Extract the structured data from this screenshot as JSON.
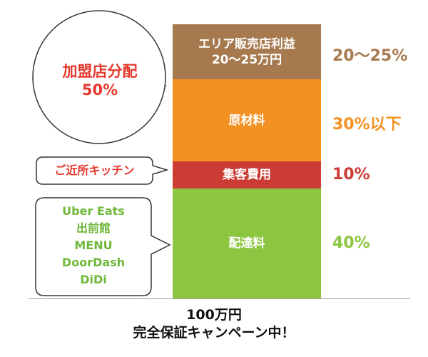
{
  "chart_data": {
    "type": "bar",
    "stacked": true,
    "segments": [
      {
        "label": "配達料",
        "value": 40,
        "percent_label": "40%",
        "color": "#8cc540"
      },
      {
        "label": "集客費用",
        "value": 10,
        "percent_label": "10%",
        "color": "#cc3c35"
      },
      {
        "label": "原材料",
        "value": 30,
        "percent_label": "30%以下",
        "color": "#f39222"
      },
      {
        "label": "エリア販売店利益\n20～25万円",
        "value": 20,
        "percent_label": "20～25%",
        "color": "#a7794e"
      }
    ],
    "total_label": "100万円",
    "caption": "完全保証キャンペーン中！"
  },
  "callouts": {
    "franchise": {
      "line1": "加盟店分配",
      "line2": "50%",
      "color": "#e5382d"
    },
    "kitchen": {
      "label": "ご近所キッチン",
      "color": "#e5382d"
    },
    "delivery": {
      "lines": [
        "Uber Eats",
        "出前館",
        "MENU",
        "DoorDash",
        "DiDi"
      ],
      "color": "#6fb83a"
    }
  }
}
